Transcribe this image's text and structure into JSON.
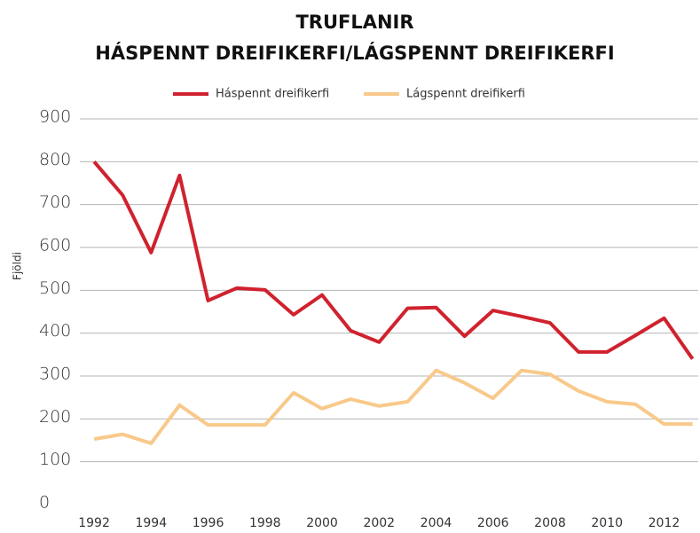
{
  "chart_data": {
    "type": "line",
    "title": [
      "TRUFLANIR",
      "HÁSPENNT DREIFIKERFI/LÁGSPENNT DREIFIKERFI"
    ],
    "y_label": "Fjöldi",
    "x": [
      1992,
      1993,
      1994,
      1995,
      1996,
      1997,
      1998,
      1999,
      2000,
      2001,
      2002,
      2003,
      2004,
      2005,
      2006,
      2007,
      2008,
      2009,
      2010,
      2011,
      2012,
      2013
    ],
    "series": [
      {
        "name": "Háspennt dreifikerfi",
        "color": "#d0222e",
        "values": [
          800,
          722,
          588,
          768,
          476,
          505,
          501,
          443,
          489,
          406,
          379,
          458,
          460,
          393,
          453,
          439,
          424,
          356,
          356,
          395,
          435,
          340
        ]
      },
      {
        "name": "Lágspennt dreifikerfi",
        "color": "#f8c98a",
        "values": [
          153,
          164,
          143,
          232,
          186,
          186,
          186,
          261,
          224,
          246,
          230,
          240,
          313,
          284,
          248,
          313,
          304,
          265,
          240,
          234,
          188,
          188
        ]
      }
    ],
    "xlim": [
      1991.5,
      2013.2
    ],
    "xticks": [
      1992,
      1994,
      1996,
      1998,
      2000,
      2002,
      2004,
      2006,
      2008,
      2010,
      2012
    ],
    "ylim": [
      0,
      900
    ],
    "yticks": [
      0,
      100,
      200,
      300,
      400,
      500,
      600,
      700,
      800,
      900
    ],
    "grid": true,
    "legend": "top"
  }
}
